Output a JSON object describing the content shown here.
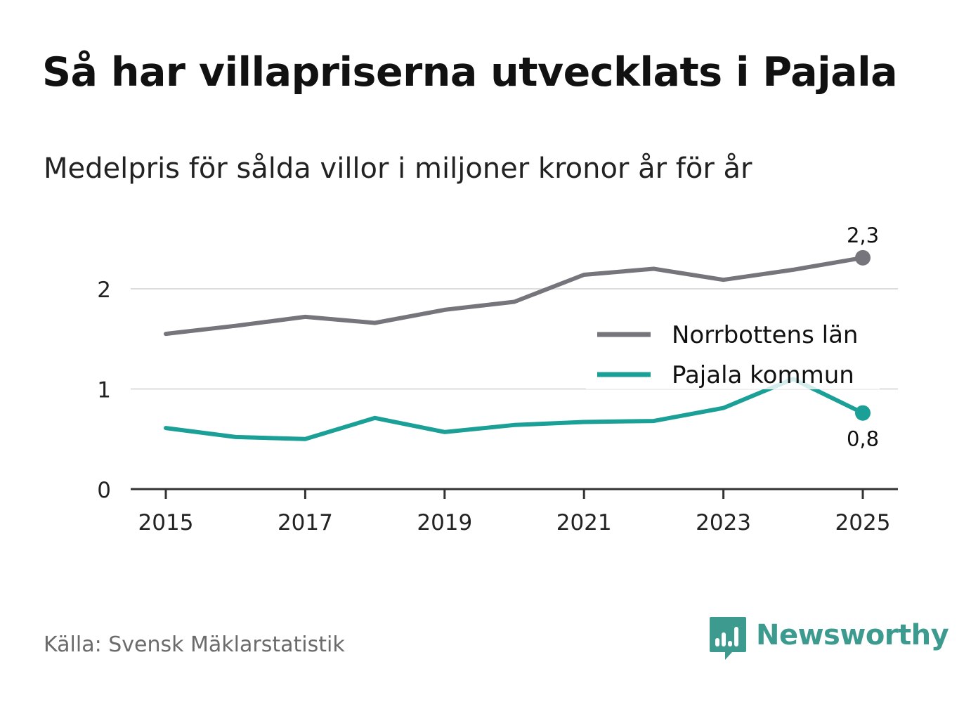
{
  "header": {
    "title": "Så har villapriserna utvecklats i Pajala",
    "subtitle": "Medelpris för sålda villor i miljoner kronor år för år"
  },
  "footer": {
    "source": "Källa: Svensk Mäklarstatistik",
    "brand": "Newsworthy"
  },
  "colors": {
    "norrbotten": "#76757c",
    "pajala": "#1aa096",
    "grid": "#dddddd",
    "axis": "#333333",
    "brand": "#3d9a8f"
  },
  "icons": {
    "logo": "newsworthy-logo-icon"
  },
  "chart_data": {
    "type": "line",
    "title": "Så har villapriserna utvecklats i Pajala",
    "subtitle": "Medelpris för sålda villor i miljoner kronor år för år",
    "xlabel": "",
    "ylabel": "",
    "x": [
      2015,
      2016,
      2017,
      2018,
      2019,
      2020,
      2021,
      2022,
      2023,
      2024,
      2025
    ],
    "xticks": [
      "2015",
      "2017",
      "2019",
      "2021",
      "2023",
      "2025"
    ],
    "xlim": [
      2015,
      2025
    ],
    "ylim": [
      0,
      2.5
    ],
    "yticks": [
      "0",
      "1",
      "2"
    ],
    "grid": true,
    "legend_position": "right",
    "series": [
      {
        "name": "Norrbottens län",
        "values": [
          1.55,
          1.63,
          1.72,
          1.66,
          1.79,
          1.87,
          2.14,
          2.2,
          2.09,
          2.19,
          2.31
        ],
        "end_label": "2,3"
      },
      {
        "name": "Pajala kommun",
        "values": [
          0.61,
          0.52,
          0.5,
          0.71,
          0.57,
          0.64,
          0.67,
          0.68,
          0.81,
          1.1,
          0.76
        ],
        "end_label": "0,8"
      }
    ]
  }
}
